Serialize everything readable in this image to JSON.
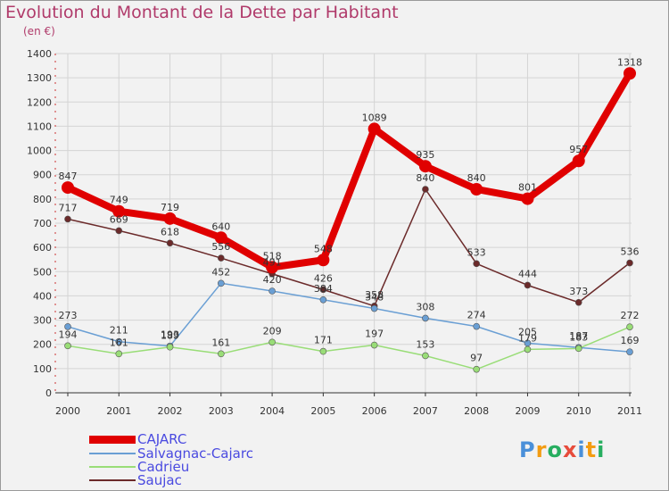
{
  "chart_data": {
    "type": "line",
    "title": "Evolution du Montant de la Dette par Habitant",
    "unit_label": "(en €)",
    "categories": [
      "2000",
      "2001",
      "2002",
      "2003",
      "2004",
      "2005",
      "2006",
      "2007",
      "2008",
      "2009",
      "2010",
      "2011"
    ],
    "ylim": [
      0,
      1400
    ],
    "yticks": [
      "0",
      "100",
      "200",
      "300",
      "400",
      "500",
      "600",
      "700",
      "800",
      "900",
      "1000",
      "1100",
      "1200",
      "1300",
      "1400"
    ],
    "grid": true,
    "series": [
      {
        "name": "CAJARC",
        "color": "#e00000",
        "values": [
          847,
          749,
          719,
          640,
          518,
          548,
          1089,
          935,
          840,
          801,
          957,
          1318
        ],
        "labels": [
          "847",
          "749",
          "719",
          "640",
          "518",
          "548",
          "1089",
          "935",
          "840",
          "801",
          "957",
          "1318"
        ]
      },
      {
        "name": "Salvagnac-Cajarc",
        "color": "#6a9fd4",
        "values": [
          273,
          211,
          193,
          452,
          420,
          384,
          348,
          308,
          274,
          205,
          187,
          169
        ],
        "labels": [
          "273",
          "211",
          "193",
          "452",
          "420",
          "384",
          "348",
          "308",
          "274",
          "205",
          "187",
          "169"
        ]
      },
      {
        "name": "Cadrieu",
        "color": "#99dd77",
        "values": [
          194,
          161,
          189,
          161,
          209,
          171,
          197,
          153,
          97,
          179,
          183,
          272
        ],
        "labels": [
          "194",
          "161",
          "189",
          "161",
          "209",
          "171",
          "197",
          "153",
          "97",
          "179",
          "183",
          "272"
        ]
      },
      {
        "name": "Saujac",
        "color": "#6b2a2a",
        "values": [
          717,
          669,
          618,
          556,
          491,
          426,
          358,
          840,
          533,
          444,
          373,
          536
        ],
        "labels": [
          "717",
          "669",
          "618",
          "556",
          "491",
          "426",
          "358",
          "840",
          "533",
          "444",
          "373",
          "536"
        ]
      }
    ]
  },
  "brand": {
    "name": "Proxiti",
    "letters": [
      "P",
      "r",
      "o",
      "x",
      "i",
      "t",
      "i"
    ],
    "colors": [
      "#4a90d9",
      "#f39c12",
      "#27ae60",
      "#e74c3c",
      "#4a90d9",
      "#f39c12",
      "#27ae60"
    ]
  }
}
